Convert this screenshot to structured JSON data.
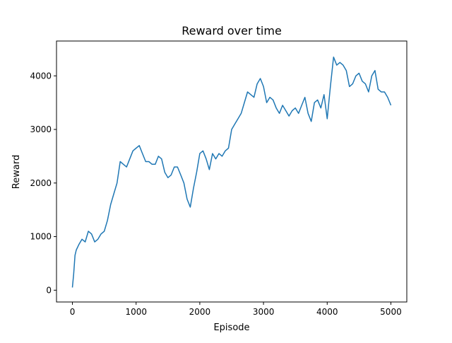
{
  "chart_data": {
    "type": "line",
    "title": "Reward over time",
    "xlabel": "Episode",
    "ylabel": "Reward",
    "xlim": [
      -250,
      5250
    ],
    "ylim": [
      -220,
      4650
    ],
    "xticks": [
      0,
      1000,
      2000,
      3000,
      4000,
      5000
    ],
    "yticks": [
      0,
      1000,
      2000,
      3000,
      4000
    ],
    "grid": false,
    "series": [
      {
        "color": "#1f77b4",
        "x": [
          0,
          20,
          40,
          60,
          100,
          150,
          200,
          250,
          300,
          350,
          400,
          450,
          500,
          550,
          600,
          650,
          700,
          750,
          800,
          850,
          900,
          950,
          1000,
          1050,
          1100,
          1150,
          1200,
          1250,
          1300,
          1350,
          1400,
          1450,
          1500,
          1550,
          1600,
          1650,
          1700,
          1750,
          1800,
          1850,
          1900,
          1950,
          2000,
          2050,
          2100,
          2150,
          2200,
          2250,
          2300,
          2350,
          2400,
          2450,
          2500,
          2550,
          2600,
          2650,
          2700,
          2750,
          2800,
          2850,
          2900,
          2950,
          3000,
          3050,
          3100,
          3150,
          3200,
          3250,
          3300,
          3350,
          3400,
          3450,
          3500,
          3550,
          3600,
          3650,
          3700,
          3750,
          3800,
          3850,
          3900,
          3950,
          4000,
          4050,
          4100,
          4150,
          4200,
          4250,
          4300,
          4350,
          4400,
          4450,
          4500,
          4550,
          4600,
          4650,
          4700,
          4750,
          4800,
          4850,
          4900,
          4950,
          5000
        ],
        "values": [
          50,
          300,
          650,
          750,
          850,
          950,
          900,
          1100,
          1050,
          900,
          950,
          1050,
          1100,
          1300,
          1600,
          1800,
          2000,
          2400,
          2350,
          2300,
          2450,
          2600,
          2650,
          2700,
          2550,
          2400,
          2400,
          2350,
          2350,
          2500,
          2450,
          2200,
          2100,
          2150,
          2300,
          2300,
          2150,
          2000,
          1700,
          1550,
          1900,
          2200,
          2550,
          2600,
          2450,
          2250,
          2550,
          2450,
          2550,
          2500,
          2600,
          2650,
          3000,
          3100,
          3200,
          3300,
          3500,
          3700,
          3650,
          3600,
          3850,
          3950,
          3800,
          3500,
          3600,
          3550,
          3400,
          3300,
          3450,
          3350,
          3250,
          3350,
          3400,
          3300,
          3450,
          3600,
          3300,
          3150,
          3500,
          3550,
          3400,
          3650,
          3200,
          3800,
          4350,
          4200,
          4250,
          4200,
          4100,
          3800,
          3850,
          4000,
          4050,
          3900,
          3850,
          3700,
          4000,
          4100,
          3750,
          3700,
          3700,
          3600,
          3450
        ]
      }
    ]
  }
}
